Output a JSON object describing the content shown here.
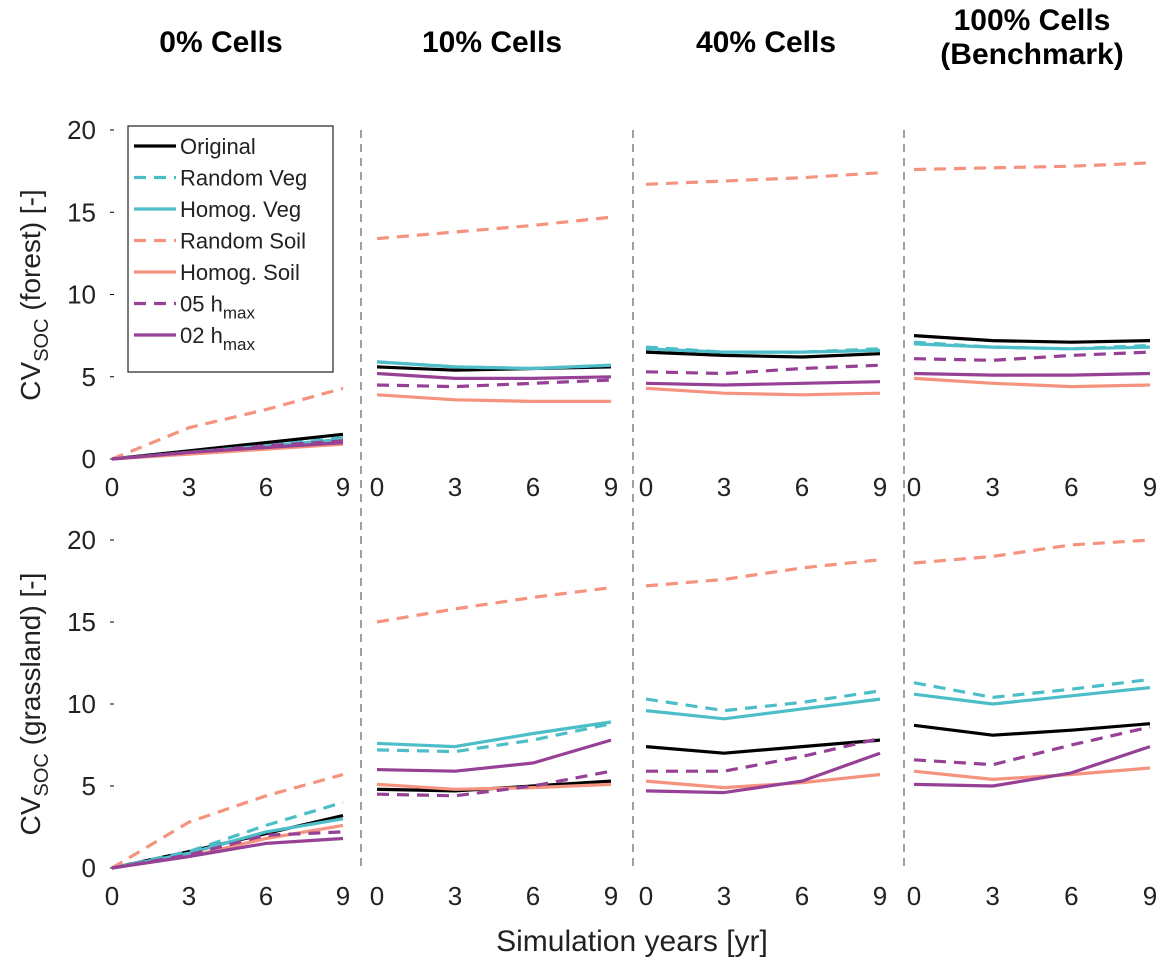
{
  "figure": {
    "xlabel": "Simulation years [yr]",
    "column_titles": [
      [
        "0% Cells"
      ],
      [
        "10% Cells"
      ],
      [
        "40% Cells"
      ],
      [
        "100% Cells",
        "(Benchmark)"
      ]
    ],
    "row_ylabels": [
      {
        "main": "CV",
        "sub": "SOC",
        "rest": " (forest) [-]"
      },
      {
        "main": "CV",
        "sub": "SOC",
        "rest": " (grassland) [-]"
      }
    ],
    "x_ticks": [
      "0",
      "3",
      "6",
      "9"
    ],
    "y_ticks": [
      "0",
      "5",
      "10",
      "15",
      "20"
    ],
    "separator_color": "#a0a0a0"
  },
  "legend": [
    {
      "key": "original",
      "label": "Original",
      "sub": ""
    },
    {
      "key": "random_veg",
      "label": "Random Veg",
      "sub": ""
    },
    {
      "key": "homog_veg",
      "label": "Homog. Veg",
      "sub": ""
    },
    {
      "key": "random_soil",
      "label": "Random Soil",
      "sub": ""
    },
    {
      "key": "homog_soil",
      "label": "Homog. Soil",
      "sub": ""
    },
    {
      "key": "h05",
      "label": "05 h",
      "sub": "max"
    },
    {
      "key": "h02",
      "label": "02 h",
      "sub": "max"
    }
  ],
  "series_styles": {
    "original": {
      "color": "#000000",
      "dash": "solid"
    },
    "random_veg": {
      "color": "#4dbec8",
      "dash": "dashed"
    },
    "homog_veg": {
      "color": "#4dbec8",
      "dash": "solid"
    },
    "random_soil": {
      "color": "#f5937e",
      "dash": "dashed"
    },
    "homog_soil": {
      "color": "#f5937e",
      "dash": "solid"
    },
    "h05": {
      "color": "#964196",
      "dash": "dashed"
    },
    "h02": {
      "color": "#964196",
      "dash": "solid"
    }
  },
  "chart_data": {
    "type": "line",
    "x": [
      0,
      3,
      6,
      9
    ],
    "xlim": [
      0,
      9
    ],
    "ylim": [
      0,
      20
    ],
    "grid": false,
    "legend_position": "top-left",
    "panels": [
      {
        "row": "forest",
        "column": "0% Cells",
        "series": [
          {
            "key": "original",
            "name": "Original",
            "values": [
              0.0,
              0.5,
              1.0,
              1.5
            ]
          },
          {
            "key": "random_veg",
            "name": "Random Veg",
            "values": [
              0.0,
              0.4,
              0.8,
              1.3
            ]
          },
          {
            "key": "homog_veg",
            "name": "Homog. Veg",
            "values": [
              0.0,
              0.4,
              0.8,
              1.2
            ]
          },
          {
            "key": "random_soil",
            "name": "Random Soil",
            "values": [
              0.0,
              1.9,
              3.0,
              4.3
            ]
          },
          {
            "key": "homog_soil",
            "name": "Homog. Soil",
            "values": [
              0.0,
              0.3,
              0.6,
              0.9
            ]
          },
          {
            "key": "h05",
            "name": "05 hmax",
            "values": [
              0.0,
              0.4,
              0.8,
              1.1
            ]
          },
          {
            "key": "h02",
            "name": "02 hmax",
            "values": [
              0.0,
              0.4,
              0.7,
              1.0
            ]
          }
        ]
      },
      {
        "row": "forest",
        "column": "10% Cells",
        "series": [
          {
            "key": "original",
            "name": "Original",
            "values": [
              5.6,
              5.4,
              5.5,
              5.6
            ]
          },
          {
            "key": "random_veg",
            "name": "Random Veg",
            "values": [
              5.9,
              5.6,
              5.5,
              5.7
            ]
          },
          {
            "key": "homog_veg",
            "name": "Homog. Veg",
            "values": [
              5.9,
              5.6,
              5.5,
              5.7
            ]
          },
          {
            "key": "random_soil",
            "name": "Random Soil",
            "values": [
              13.4,
              13.8,
              14.2,
              14.7
            ]
          },
          {
            "key": "homog_soil",
            "name": "Homog. Soil",
            "values": [
              3.9,
              3.6,
              3.5,
              3.5
            ]
          },
          {
            "key": "h05",
            "name": "05 hmax",
            "values": [
              4.5,
              4.4,
              4.6,
              4.8
            ]
          },
          {
            "key": "h02",
            "name": "02 hmax",
            "values": [
              5.2,
              4.9,
              4.9,
              5.0
            ]
          }
        ]
      },
      {
        "row": "forest",
        "column": "40% Cells",
        "series": [
          {
            "key": "original",
            "name": "Original",
            "values": [
              6.5,
              6.3,
              6.2,
              6.4
            ]
          },
          {
            "key": "random_veg",
            "name": "Random Veg",
            "values": [
              6.8,
              6.5,
              6.5,
              6.7
            ]
          },
          {
            "key": "homog_veg",
            "name": "Homog. Veg",
            "values": [
              6.7,
              6.5,
              6.5,
              6.6
            ]
          },
          {
            "key": "random_soil",
            "name": "Random Soil",
            "values": [
              16.7,
              16.9,
              17.1,
              17.4
            ]
          },
          {
            "key": "homog_soil",
            "name": "Homog. Soil",
            "values": [
              4.3,
              4.0,
              3.9,
              4.0
            ]
          },
          {
            "key": "h05",
            "name": "05 hmax",
            "values": [
              5.3,
              5.2,
              5.5,
              5.7
            ]
          },
          {
            "key": "h02",
            "name": "02 hmax",
            "values": [
              4.6,
              4.5,
              4.6,
              4.7
            ]
          }
        ]
      },
      {
        "row": "forest",
        "column": "100% Cells (Benchmark)",
        "series": [
          {
            "key": "original",
            "name": "Original",
            "values": [
              7.5,
              7.2,
              7.1,
              7.2
            ]
          },
          {
            "key": "random_veg",
            "name": "Random Veg",
            "values": [
              7.1,
              6.8,
              6.7,
              6.9
            ]
          },
          {
            "key": "homog_veg",
            "name": "Homog. Veg",
            "values": [
              7.0,
              6.8,
              6.7,
              6.8
            ]
          },
          {
            "key": "random_soil",
            "name": "Random Soil",
            "values": [
              17.6,
              17.7,
              17.8,
              18.0
            ]
          },
          {
            "key": "homog_soil",
            "name": "Homog. Soil",
            "values": [
              4.9,
              4.6,
              4.4,
              4.5
            ]
          },
          {
            "key": "h05",
            "name": "05 hmax",
            "values": [
              6.1,
              6.0,
              6.3,
              6.5
            ]
          },
          {
            "key": "h02",
            "name": "02 hmax",
            "values": [
              5.2,
              5.1,
              5.1,
              5.2
            ]
          }
        ]
      },
      {
        "row": "grassland",
        "column": "0% Cells",
        "series": [
          {
            "key": "original",
            "name": "Original",
            "values": [
              0.0,
              1.0,
              2.1,
              3.2
            ]
          },
          {
            "key": "random_veg",
            "name": "Random Veg",
            "values": [
              0.0,
              1.0,
              2.6,
              4.0
            ]
          },
          {
            "key": "homog_veg",
            "name": "Homog. Veg",
            "values": [
              0.0,
              0.9,
              2.2,
              3.0
            ]
          },
          {
            "key": "random_soil",
            "name": "Random Soil",
            "values": [
              0.0,
              2.8,
              4.4,
              5.7
            ]
          },
          {
            "key": "homog_soil",
            "name": "Homog. Soil",
            "values": [
              0.0,
              0.7,
              1.8,
              2.6
            ]
          },
          {
            "key": "h05",
            "name": "05 hmax",
            "values": [
              0.0,
              0.8,
              2.0,
              2.2
            ]
          },
          {
            "key": "h02",
            "name": "02 hmax",
            "values": [
              0.0,
              0.7,
              1.5,
              1.8
            ]
          }
        ]
      },
      {
        "row": "grassland",
        "column": "10% Cells",
        "series": [
          {
            "key": "original",
            "name": "Original",
            "values": [
              4.8,
              4.7,
              5.0,
              5.3
            ]
          },
          {
            "key": "random_veg",
            "name": "Random Veg",
            "values": [
              7.2,
              7.1,
              7.8,
              8.8
            ]
          },
          {
            "key": "homog_veg",
            "name": "Homog. Veg",
            "values": [
              7.6,
              7.4,
              8.2,
              8.9
            ]
          },
          {
            "key": "random_soil",
            "name": "Random Soil",
            "values": [
              15.0,
              15.8,
              16.5,
              17.1
            ]
          },
          {
            "key": "homog_soil",
            "name": "Homog. Soil",
            "values": [
              5.1,
              4.8,
              4.9,
              5.1
            ]
          },
          {
            "key": "h05",
            "name": "05 hmax",
            "values": [
              4.5,
              4.4,
              5.0,
              5.9
            ]
          },
          {
            "key": "h02",
            "name": "02 hmax",
            "values": [
              6.0,
              5.9,
              6.4,
              7.8
            ]
          }
        ]
      },
      {
        "row": "grassland",
        "column": "40% Cells",
        "series": [
          {
            "key": "original",
            "name": "Original",
            "values": [
              7.4,
              7.0,
              7.4,
              7.8
            ]
          },
          {
            "key": "random_veg",
            "name": "Random Veg",
            "values": [
              10.3,
              9.6,
              10.1,
              10.8
            ]
          },
          {
            "key": "homog_veg",
            "name": "Homog. Veg",
            "values": [
              9.6,
              9.1,
              9.7,
              10.3
            ]
          },
          {
            "key": "random_soil",
            "name": "Random Soil",
            "values": [
              17.2,
              17.6,
              18.3,
              18.8
            ]
          },
          {
            "key": "homog_soil",
            "name": "Homog. Soil",
            "values": [
              5.3,
              4.9,
              5.2,
              5.7
            ]
          },
          {
            "key": "h05",
            "name": "05 hmax",
            "values": [
              5.9,
              5.9,
              6.8,
              7.9
            ]
          },
          {
            "key": "h02",
            "name": "02 hmax",
            "values": [
              4.7,
              4.6,
              5.3,
              7.0
            ]
          }
        ]
      },
      {
        "row": "grassland",
        "column": "100% Cells (Benchmark)",
        "series": [
          {
            "key": "original",
            "name": "Original",
            "values": [
              8.7,
              8.1,
              8.4,
              8.8
            ]
          },
          {
            "key": "random_veg",
            "name": "Random Veg",
            "values": [
              11.3,
              10.4,
              10.9,
              11.5
            ]
          },
          {
            "key": "homog_veg",
            "name": "Homog. Veg",
            "values": [
              10.6,
              10.0,
              10.5,
              11.0
            ]
          },
          {
            "key": "random_soil",
            "name": "Random Soil",
            "values": [
              18.6,
              19.0,
              19.7,
              20.0
            ]
          },
          {
            "key": "homog_soil",
            "name": "Homog. Soil",
            "values": [
              5.9,
              5.4,
              5.7,
              6.1
            ]
          },
          {
            "key": "h05",
            "name": "05 hmax",
            "values": [
              6.6,
              6.3,
              7.5,
              8.6
            ]
          },
          {
            "key": "h02",
            "name": "02 hmax",
            "values": [
              5.1,
              5.0,
              5.8,
              7.4
            ]
          }
        ]
      }
    ]
  }
}
